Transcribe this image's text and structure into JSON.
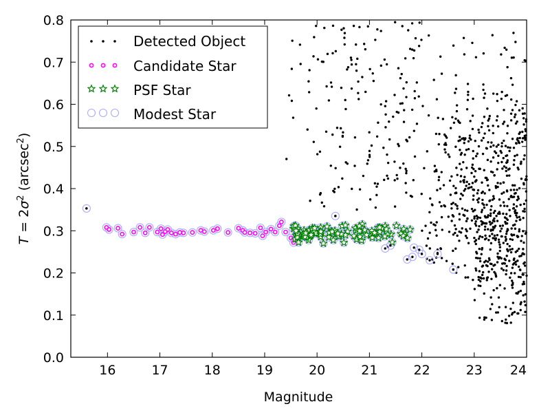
{
  "chart_data": {
    "type": "scatter",
    "xlabel": "Magnitude",
    "ylabel_parts": [
      "T",
      " = 2",
      "σ",
      "2",
      " (arcsec",
      "2",
      ")"
    ],
    "xlim": [
      15.3,
      24
    ],
    "ylim": [
      0.0,
      0.8
    ],
    "xticks": [
      "16",
      "17",
      "18",
      "19",
      "20",
      "21",
      "22",
      "23",
      "24"
    ],
    "yticks": [
      "0.0",
      "0.1",
      "0.2",
      "0.3",
      "0.4",
      "0.5",
      "0.6",
      "0.7",
      "0.8"
    ],
    "grid": false,
    "legend_position": "top-left",
    "colors": {
      "detected": "#000000",
      "candidate": "#ff00ff",
      "psf": "#008000",
      "modest": "#aaaaff"
    },
    "series": [
      {
        "name": "Detected Object",
        "marker": "dot",
        "note_points": [
          [
            15.6,
            0.353
          ],
          [
            20.35,
            0.335
          ],
          [
            21.35,
            0.262
          ],
          [
            21.72,
            0.232
          ],
          [
            22.3,
            0.247
          ],
          [
            22.6,
            0.208
          ],
          [
            22.2,
            0.232
          ]
        ],
        "generated_clusters": [
          {
            "count": 560,
            "x": [
              22.0,
              24.0
            ],
            "y": [
              0.18,
              0.8
            ],
            "center_y": 0.4
          },
          {
            "count": 180,
            "x": [
              19.2,
              22.0
            ],
            "y": [
              0.35,
              0.8
            ]
          },
          {
            "count": 170,
            "x": [
              23.0,
              24.0
            ],
            "y": [
              0.08,
              0.35
            ]
          }
        ]
      },
      {
        "name": "Candidate Star",
        "marker": "circle",
        "points": [
          [
            15.98,
            0.308
          ],
          [
            16.03,
            0.303
          ],
          [
            16.2,
            0.306
          ],
          [
            16.28,
            0.292
          ],
          [
            16.5,
            0.297
          ],
          [
            16.62,
            0.308
          ],
          [
            16.72,
            0.295
          ],
          [
            16.8,
            0.308
          ],
          [
            16.95,
            0.297
          ],
          [
            17.02,
            0.305
          ],
          [
            17.05,
            0.291
          ],
          [
            17.1,
            0.298
          ],
          [
            17.15,
            0.303
          ],
          [
            17.22,
            0.295
          ],
          [
            17.3,
            0.292
          ],
          [
            17.38,
            0.296
          ],
          [
            17.45,
            0.295
          ],
          [
            17.62,
            0.296
          ],
          [
            17.78,
            0.301
          ],
          [
            17.85,
            0.298
          ],
          [
            18.02,
            0.301
          ],
          [
            18.1,
            0.305
          ],
          [
            18.3,
            0.296
          ],
          [
            18.5,
            0.306
          ],
          [
            18.58,
            0.301
          ],
          [
            18.62,
            0.296
          ],
          [
            18.72,
            0.295
          ],
          [
            18.82,
            0.294
          ],
          [
            18.92,
            0.307
          ],
          [
            18.96,
            0.288
          ],
          [
            19.02,
            0.297
          ],
          [
            19.12,
            0.304
          ],
          [
            19.2,
            0.297
          ],
          [
            19.28,
            0.312
          ],
          [
            19.32,
            0.321
          ],
          [
            19.4,
            0.297
          ],
          [
            19.5,
            0.283
          ],
          [
            19.55,
            0.272
          ],
          [
            19.62,
            0.305
          ]
        ]
      },
      {
        "name": "PSF Star",
        "marker": "star",
        "generated_clusters": [
          {
            "count": 95,
            "x": [
              19.55,
              21.8
            ],
            "y": [
              0.27,
              0.32
            ]
          }
        ]
      },
      {
        "name": "Modest Star",
        "marker": "open-circle",
        "points": [
          [
            15.6,
            0.353
          ],
          [
            20.35,
            0.335
          ],
          [
            21.3,
            0.258
          ],
          [
            21.4,
            0.265
          ],
          [
            21.72,
            0.232
          ],
          [
            21.82,
            0.238
          ],
          [
            21.85,
            0.26
          ],
          [
            21.95,
            0.255
          ],
          [
            22.0,
            0.245
          ],
          [
            22.15,
            0.23
          ],
          [
            22.3,
            0.245
          ],
          [
            22.6,
            0.208
          ]
        ]
      }
    ]
  }
}
